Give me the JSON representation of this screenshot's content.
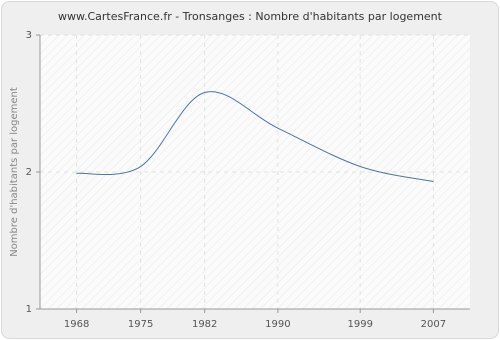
{
  "chart_data": {
    "type": "line",
    "title": "www.CartesFrance.fr - Tronsanges : Nombre d'habitants par logement",
    "y_label": "Nombre d'habitants par logement",
    "x": [
      1968,
      1975,
      1982,
      1990,
      1999,
      2007
    ],
    "series": [
      {
        "name": "Nombre d'habitants par logement",
        "color": "#4a76a8",
        "values": [
          1.99,
          2.04,
          2.58,
          2.32,
          2.04,
          1.93
        ]
      }
    ],
    "xlim": [
      1964,
      2011
    ],
    "xticks": [
      1968,
      1975,
      1982,
      1990,
      1999,
      2007
    ],
    "ylim": [
      1,
      3
    ],
    "yticks": [
      1,
      2,
      3
    ],
    "grid": true
  }
}
